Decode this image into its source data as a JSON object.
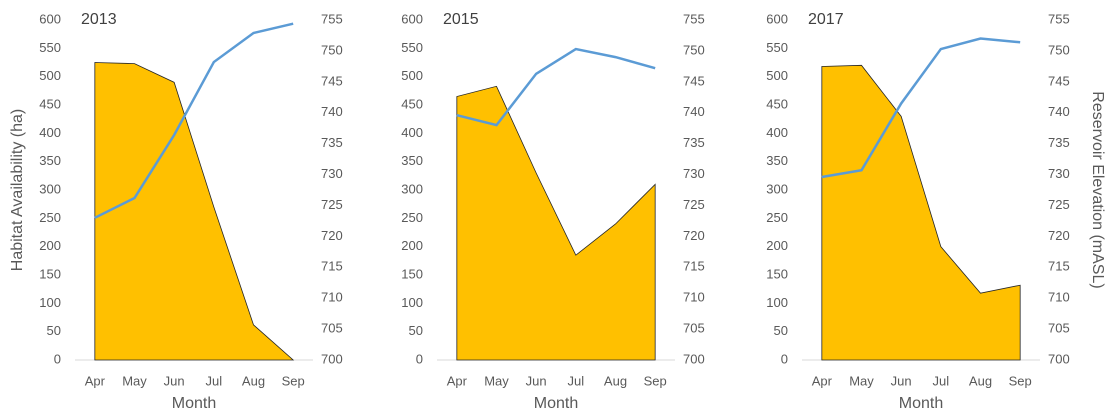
{
  "chart_data": [
    {
      "type": "area-line",
      "title": "2013",
      "ylabel": "Habitat Availability (ha)",
      "xlabel": "Month",
      "categories": [
        "Apr",
        "May",
        "Jun",
        "Jul",
        "Aug",
        "Sep"
      ],
      "series": [
        {
          "type": "area",
          "color": "#ffc000",
          "values": [
            525,
            523,
            490,
            270,
            62,
            0
          ]
        },
        {
          "type": "line",
          "color": "#5b9bd5",
          "axis": "y2",
          "values": [
            723,
            726.2,
            736.4,
            748.2,
            752.9,
            754.4
          ]
        }
      ],
      "ylim": [
        0,
        600
      ],
      "yticks": [
        0,
        50,
        100,
        150,
        200,
        250,
        300,
        350,
        400,
        450,
        500,
        550,
        600
      ],
      "y2lim": [
        700,
        755
      ],
      "y2ticks": [
        700,
        705,
        710,
        715,
        720,
        725,
        730,
        735,
        740,
        745,
        750,
        755
      ]
    },
    {
      "type": "area-line",
      "title": "2015",
      "xlabel": "Month",
      "categories": [
        "Apr",
        "May",
        "Jun",
        "Jul",
        "Aug",
        "Sep"
      ],
      "series": [
        {
          "type": "area",
          "color": "#ffc000",
          "values": [
            465,
            483,
            330,
            185,
            240,
            310
          ]
        },
        {
          "type": "line",
          "color": "#5b9bd5",
          "axis": "y2",
          "values": [
            739.6,
            738,
            746.3,
            750.3,
            749,
            747.2
          ]
        }
      ],
      "ylim": [
        0,
        600
      ],
      "yticks": [
        0,
        50,
        100,
        150,
        200,
        250,
        300,
        350,
        400,
        450,
        500,
        550,
        600
      ],
      "y2lim": [
        700,
        755
      ],
      "y2ticks": [
        700,
        705,
        710,
        715,
        720,
        725,
        730,
        735,
        740,
        745,
        750,
        755
      ]
    },
    {
      "type": "area-line",
      "title": "2017",
      "y2label": "Reservoir Elevation (mASL)",
      "xlabel": "Month",
      "categories": [
        "Apr",
        "May",
        "Jun",
        "Jul",
        "Aug",
        "Sep"
      ],
      "series": [
        {
          "type": "area",
          "color": "#ffc000",
          "values": [
            518,
            520,
            430,
            200,
            118,
            132
          ]
        },
        {
          "type": "line",
          "color": "#5b9bd5",
          "axis": "y2",
          "values": [
            729.6,
            730.7,
            741.5,
            750.3,
            752,
            751.4
          ]
        }
      ],
      "ylim": [
        0,
        600
      ],
      "yticks": [
        0,
        50,
        100,
        150,
        200,
        250,
        300,
        350,
        400,
        450,
        500,
        550,
        600
      ],
      "y2lim": [
        700,
        755
      ],
      "y2ticks": [
        700,
        705,
        710,
        715,
        720,
        725,
        730,
        735,
        740,
        745,
        750,
        755
      ]
    }
  ]
}
